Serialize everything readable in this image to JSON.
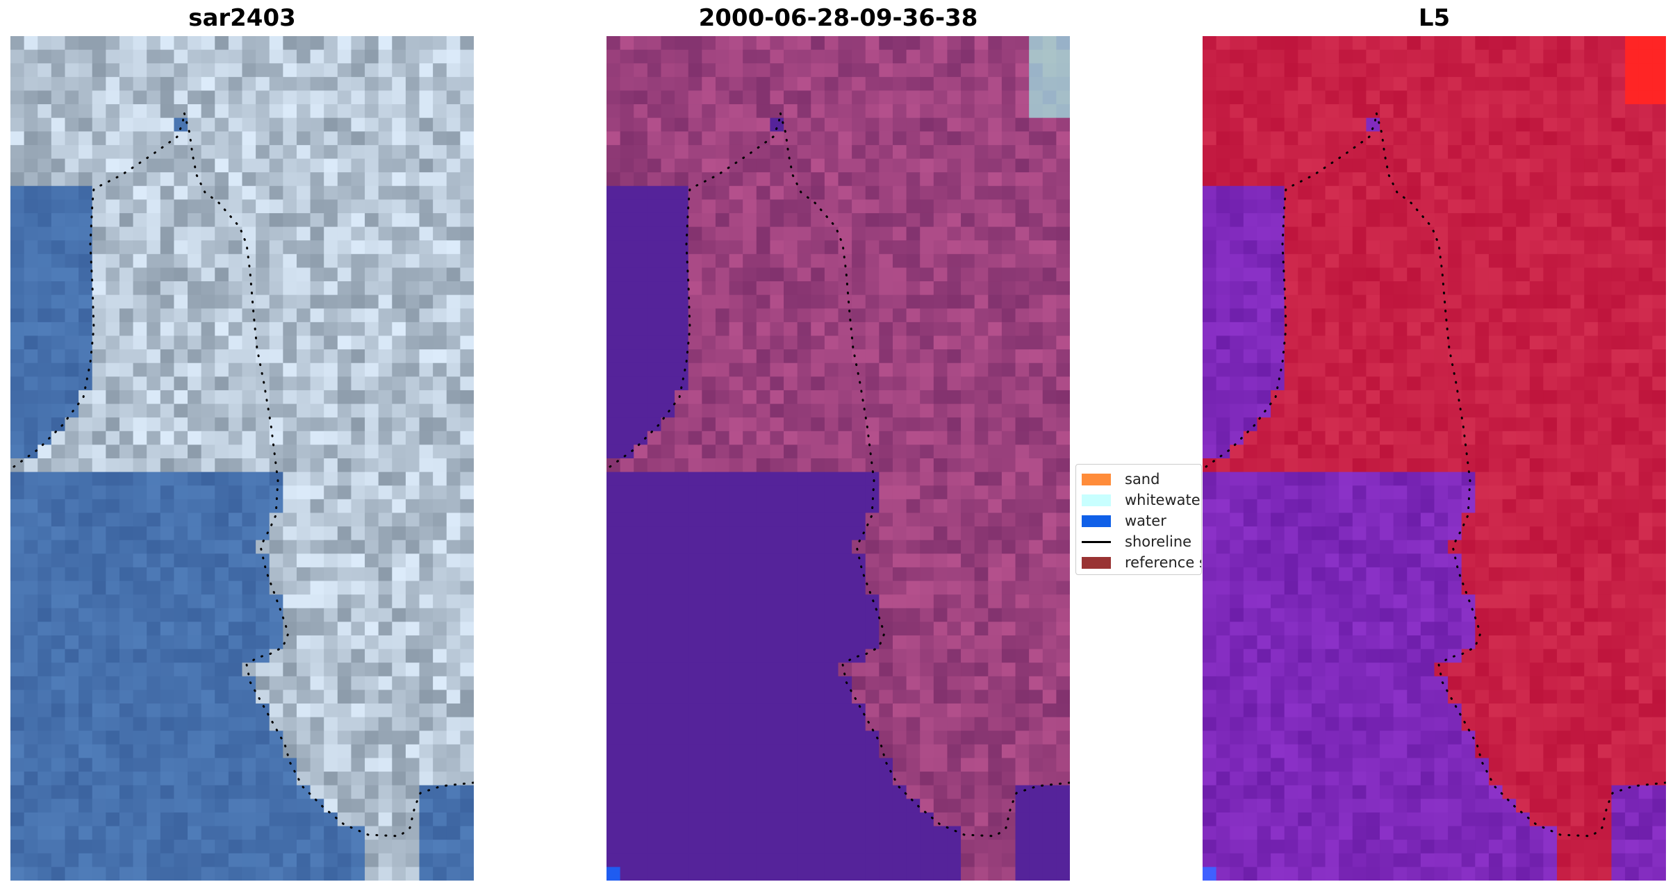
{
  "panels": [
    {
      "title": "sar2403"
    },
    {
      "title": "2000-06-28-09-36-38"
    },
    {
      "title": "L5"
    }
  ],
  "legend": {
    "items": [
      {
        "label": "sand",
        "color": "#ff8c3a"
      },
      {
        "label": "whitewater",
        "color": "#c8ffff"
      },
      {
        "label": "water",
        "color": "#1060e8"
      },
      {
        "label": "shoreline",
        "color": "#000000"
      },
      {
        "label": "reference s",
        "color": "#993333"
      }
    ]
  },
  "colors": {
    "rgb_water": "#4068a8",
    "rgb_land": "#9db0c4",
    "class_land": "#8a3a78",
    "class_water": "#55239a",
    "class_water_px": "#1f5cf0",
    "index_land": "#c0163e",
    "index_water": "#7a1fb2",
    "index_edge": "#ff2020",
    "shoreline": "#000000"
  }
}
